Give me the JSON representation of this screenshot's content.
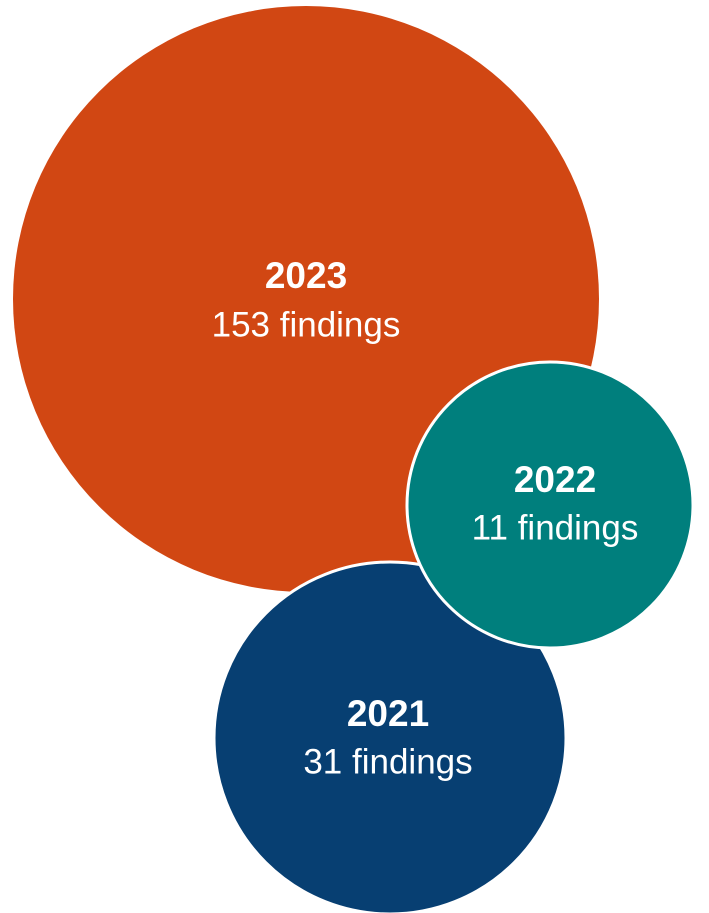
{
  "nodes": [
    {
      "label": "2023",
      "text": "153 findings"
    },
    {
      "label": "2022",
      "text": "11 findings"
    },
    {
      "label": "2021",
      "text": "31 findings"
    }
  ]
}
